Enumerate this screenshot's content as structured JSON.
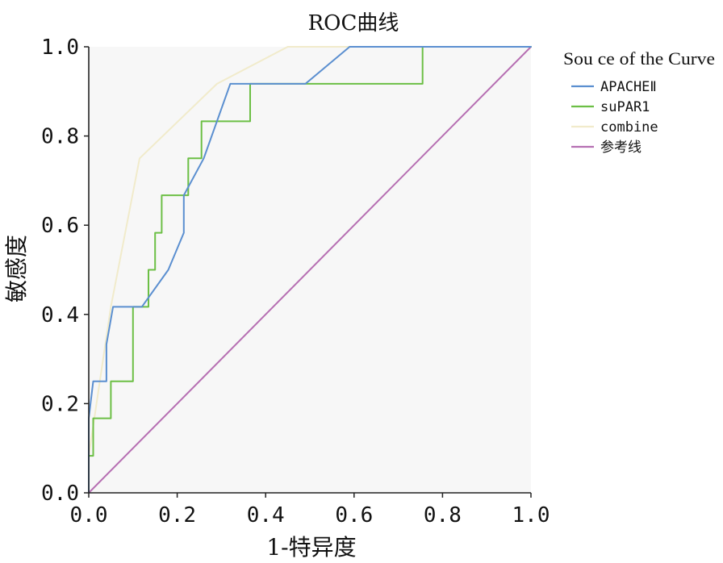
{
  "chart_data": {
    "type": "line",
    "title": "ROC曲线",
    "xlabel": "1-特异度",
    "ylabel": "敏感度",
    "xlim": [
      0,
      1
    ],
    "ylim": [
      0,
      1
    ],
    "grid": false,
    "x_ticks": [
      "0.0",
      "0.2",
      "0.4",
      "0.6",
      "0.8",
      "1.0"
    ],
    "y_ticks": [
      "0.0",
      "0.2",
      "0.4",
      "0.6",
      "0.8",
      "1.0"
    ],
    "background": "#f7f7f7",
    "legend": {
      "title": "Sou ce of the Curve",
      "placement": "right"
    },
    "series": [
      {
        "name": "APACHEⅡ",
        "color": "#5b8fd0",
        "points": [
          [
            0.0,
            0.0
          ],
          [
            0.0,
            0.167
          ],
          [
            0.01,
            0.25
          ],
          [
            0.04,
            0.25
          ],
          [
            0.04,
            0.333
          ],
          [
            0.055,
            0.417
          ],
          [
            0.12,
            0.417
          ],
          [
            0.18,
            0.5
          ],
          [
            0.215,
            0.583
          ],
          [
            0.215,
            0.667
          ],
          [
            0.26,
            0.75
          ],
          [
            0.32,
            0.917
          ],
          [
            0.49,
            0.917
          ],
          [
            0.59,
            1.0
          ],
          [
            1.0,
            1.0
          ]
        ]
      },
      {
        "name": "suPAR1",
        "color": "#6cbf45",
        "points": [
          [
            0.0,
            0.0
          ],
          [
            0.0,
            0.083
          ],
          [
            0.01,
            0.083
          ],
          [
            0.01,
            0.167
          ],
          [
            0.05,
            0.167
          ],
          [
            0.05,
            0.25
          ],
          [
            0.1,
            0.25
          ],
          [
            0.1,
            0.417
          ],
          [
            0.135,
            0.417
          ],
          [
            0.135,
            0.5
          ],
          [
            0.15,
            0.5
          ],
          [
            0.15,
            0.583
          ],
          [
            0.165,
            0.583
          ],
          [
            0.165,
            0.667
          ],
          [
            0.225,
            0.667
          ],
          [
            0.225,
            0.75
          ],
          [
            0.255,
            0.75
          ],
          [
            0.255,
            0.833
          ],
          [
            0.365,
            0.833
          ],
          [
            0.365,
            0.917
          ],
          [
            0.755,
            0.917
          ],
          [
            0.755,
            1.0
          ],
          [
            1.0,
            1.0
          ]
        ]
      },
      {
        "name": "combine",
        "color": "#f1ebcb",
        "points": [
          [
            0.0,
            0.0
          ],
          [
            0.0,
            0.083
          ],
          [
            0.05,
            0.417
          ],
          [
            0.115,
            0.75
          ],
          [
            0.29,
            0.917
          ],
          [
            0.45,
            1.0
          ],
          [
            1.0,
            1.0
          ]
        ]
      },
      {
        "name": "参考线",
        "color": "#b66fb2",
        "points": [
          [
            0.0,
            0.0
          ],
          [
            1.0,
            1.0
          ]
        ]
      }
    ]
  }
}
